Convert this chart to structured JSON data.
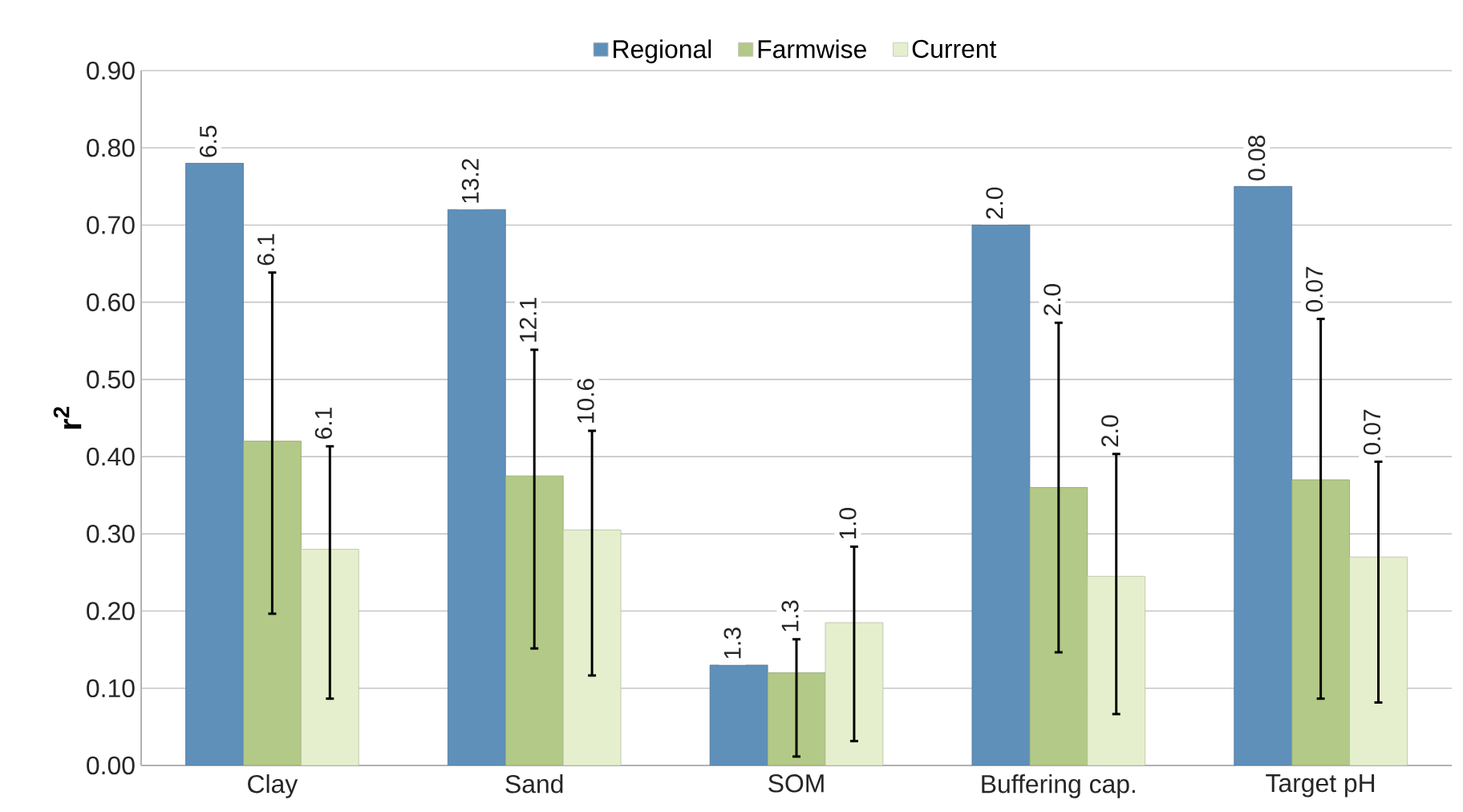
{
  "chart_data": {
    "type": "bar",
    "ylabel": "r$^{2}$",
    "categories": [
      "Clay",
      "Sand",
      "SOM",
      "Buffering cap.",
      "Target pH"
    ],
    "series": [
      {
        "name": "Regional",
        "color": "#5f90ba",
        "values": [
          0.78,
          0.72,
          0.13,
          0.7,
          0.75
        ]
      },
      {
        "name": "Farmwise",
        "color": "#b3c987",
        "values": [
          0.42,
          0.375,
          0.12,
          0.36,
          0.37
        ],
        "errors": [
          [
            0.195,
            0.64
          ],
          [
            0.15,
            0.54
          ],
          [
            0.01,
            0.165
          ],
          [
            0.145,
            0.575
          ],
          [
            0.085,
            0.58
          ]
        ]
      },
      {
        "name": "Current",
        "color": "#e6efcd",
        "values": [
          0.28,
          0.305,
          0.185,
          0.245,
          0.27
        ],
        "errors": [
          [
            0.085,
            0.415
          ],
          [
            0.115,
            0.435
          ],
          [
            0.03,
            0.285
          ],
          [
            0.065,
            0.405
          ],
          [
            0.08,
            0.395
          ]
        ]
      }
    ],
    "annotations": [
      "6.5",
      "6.1",
      "6.1",
      "13.2",
      "12.1",
      "10.6",
      "1.3",
      "1.3",
      "1.0",
      "2.0",
      "2.0",
      "2.0",
      "0.08",
      "0.07",
      "0.07"
    ],
    "ylim": [
      0,
      0.9
    ],
    "yticks": [
      {
        "value": 0,
        "label": "0.00"
      },
      {
        "value": 0.1,
        "label": "0.10"
      },
      {
        "value": 0.2,
        "label": "0.20"
      },
      {
        "value": 0.3,
        "label": "0.30"
      },
      {
        "value": 0.4,
        "label": "0.40"
      },
      {
        "value": 0.5,
        "label": "0.50"
      },
      {
        "value": 0.6,
        "label": "0.60"
      },
      {
        "value": 0.7,
        "label": "0.70"
      },
      {
        "value": 0.8,
        "label": "0.80"
      },
      {
        "value": 0.9,
        "label": "0.90"
      }
    ],
    "grid": "y",
    "legend": "top"
  }
}
